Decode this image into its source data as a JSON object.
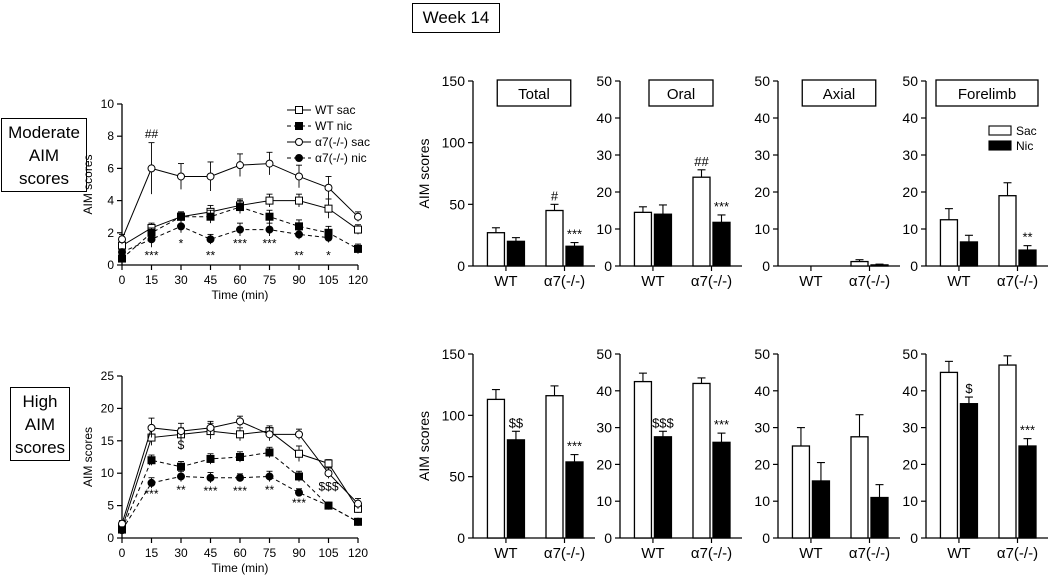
{
  "figure_title": "Week 14",
  "row_labels": [
    {
      "lines": [
        "Moderate",
        "AIM",
        "scores"
      ]
    },
    {
      "lines": [
        "High",
        "AIM",
        "scores"
      ]
    }
  ],
  "chart_data": [
    {
      "type": "line",
      "id": "moderate-time",
      "xlabel": "Time (min)",
      "ylabel": "AIM scores",
      "x": [
        0,
        15,
        30,
        45,
        60,
        75,
        90,
        105,
        120
      ],
      "xticks": [
        "0",
        "15",
        "30",
        "45",
        "60",
        "75",
        "90",
        "105",
        "120"
      ],
      "ylim": [
        0,
        10
      ],
      "yticks": [
        "0",
        "2",
        "4",
        "6",
        "8",
        "10"
      ],
      "series": [
        {
          "name": "WT sac",
          "marker": "open-square",
          "dash": false,
          "values": [
            1.2,
            2.3,
            3.0,
            3.3,
            3.7,
            4.0,
            4.0,
            3.5,
            2.2
          ],
          "errors": [
            0.2,
            0.3,
            0.3,
            0.4,
            0.4,
            0.4,
            0.4,
            0.6,
            0.3
          ]
        },
        {
          "name": "WT nic",
          "marker": "filled-square",
          "dash": true,
          "values": [
            0.4,
            2.0,
            3.0,
            3.0,
            3.6,
            3.0,
            2.4,
            2.0,
            1.0
          ],
          "errors": [
            0.2,
            0.3,
            0.3,
            0.4,
            0.4,
            0.4,
            0.4,
            0.4,
            0.3
          ]
        },
        {
          "name": "α7(-/-) sac",
          "marker": "open-circle",
          "dash": false,
          "values": [
            1.6,
            6.0,
            5.5,
            5.5,
            6.2,
            6.3,
            5.5,
            4.8,
            3.0
          ],
          "errors": [
            0.3,
            1.6,
            0.8,
            0.9,
            0.7,
            0.7,
            0.7,
            0.7,
            0.3
          ]
        },
        {
          "name": "α7(-/-) nic",
          "marker": "filled-circle",
          "dash": true,
          "values": [
            0.8,
            1.6,
            2.4,
            1.6,
            2.2,
            2.2,
            1.9,
            1.7,
            null
          ],
          "errors": [
            0.2,
            0.5,
            0.4,
            0.3,
            0.4,
            0.4,
            0.3,
            0.3,
            null
          ]
        }
      ],
      "annotations": [
        {
          "x": 15,
          "y": 7.9,
          "text": "##"
        },
        {
          "x": 15,
          "y": 0.35,
          "text": "***"
        },
        {
          "x": 30,
          "y": 1.1,
          "text": "*"
        },
        {
          "x": 45,
          "y": 0.35,
          "text": "**"
        },
        {
          "x": 60,
          "y": 1.1,
          "text": "***"
        },
        {
          "x": 75,
          "y": 1.1,
          "text": "***"
        },
        {
          "x": 90,
          "y": 0.35,
          "text": "**"
        },
        {
          "x": 105,
          "y": 0.35,
          "text": "*"
        }
      ]
    },
    {
      "type": "line",
      "id": "high-time",
      "xlabel": "Time (min)",
      "ylabel": "AIM scores",
      "x": [
        0,
        15,
        30,
        45,
        60,
        75,
        90,
        105,
        120
      ],
      "xticks": [
        "0",
        "15",
        "30",
        "45",
        "60",
        "75",
        "90",
        "105",
        "120"
      ],
      "ylim": [
        0,
        25
      ],
      "yticks": [
        "0",
        "5",
        "10",
        "15",
        "20",
        "25"
      ],
      "series": [
        {
          "name": "WT sac",
          "marker": "open-square",
          "dash": false,
          "values": [
            1.5,
            15.5,
            16.0,
            16.5,
            16.0,
            16.5,
            13.0,
            11.5,
            4.5
          ],
          "errors": [
            0.4,
            1.2,
            1.0,
            1.2,
            1.0,
            0.8,
            1.2,
            0.6,
            0.6
          ]
        },
        {
          "name": "WT nic",
          "marker": "filled-square",
          "dash": true,
          "values": [
            1.3,
            12.0,
            11.0,
            12.2,
            12.5,
            13.2,
            9.5,
            5.0,
            2.5
          ],
          "errors": [
            0.3,
            0.8,
            0.8,
            0.8,
            0.8,
            0.8,
            0.8,
            0.5,
            0.4
          ]
        },
        {
          "name": "α7(-/-) sac",
          "marker": "open-circle",
          "dash": false,
          "values": [
            2.2,
            17.0,
            16.5,
            17.0,
            18.0,
            16.0,
            16.0,
            10.0,
            5.3
          ],
          "errors": [
            0.5,
            1.5,
            1.2,
            1.0,
            0.8,
            1.0,
            0.8,
            0.8,
            0.8
          ]
        },
        {
          "name": "α7(-/-) nic",
          "marker": "filled-circle",
          "dash": true,
          "values": [
            1.2,
            8.5,
            9.5,
            9.3,
            9.3,
            9.5,
            7.0,
            5.0,
            2.5
          ],
          "errors": [
            0.3,
            0.8,
            0.8,
            0.8,
            0.6,
            0.8,
            0.6,
            0.5,
            0.4
          ]
        }
      ],
      "annotations": [
        {
          "x": 30,
          "y": 13.7,
          "text": "$"
        },
        {
          "x": 15,
          "y": 6.2,
          "text": "***"
        },
        {
          "x": 30,
          "y": 6.8,
          "text": "**"
        },
        {
          "x": 45,
          "y": 6.6,
          "text": "***"
        },
        {
          "x": 60,
          "y": 6.6,
          "text": "***"
        },
        {
          "x": 75,
          "y": 6.8,
          "text": "**"
        },
        {
          "x": 90,
          "y": 4.8,
          "text": "***"
        },
        {
          "x": 105,
          "y": 7.3,
          "text": "$$$"
        }
      ]
    },
    {
      "type": "bar",
      "id": "moderate-total",
      "title": "Total",
      "ylabel": "AIM scores",
      "ylim": [
        0,
        150
      ],
      "yticks": [
        "0",
        "50",
        "100",
        "150"
      ],
      "categories": [
        "WT",
        "α7(-/-)"
      ],
      "series": [
        {
          "name": "Sac",
          "values": [
            27,
            45
          ],
          "errors": [
            4,
            5
          ]
        },
        {
          "name": "Nic",
          "values": [
            20,
            16
          ],
          "errors": [
            3,
            3
          ]
        }
      ],
      "annotations": [
        {
          "group": 1,
          "bar": 0,
          "text": "#"
        },
        {
          "group": 1,
          "bar": 1,
          "text": "***"
        }
      ]
    },
    {
      "type": "bar",
      "id": "moderate-oral",
      "title": "Oral",
      "ylabel": "",
      "ylim": [
        0,
        50
      ],
      "yticks": [
        "0",
        "10",
        "20",
        "30",
        "40",
        "50"
      ],
      "categories": [
        "WT",
        "α7(-/-)"
      ],
      "series": [
        {
          "name": "Sac",
          "values": [
            14.5,
            24
          ],
          "errors": [
            1.5,
            2
          ]
        },
        {
          "name": "Nic",
          "values": [
            14,
            11.8
          ],
          "errors": [
            2.5,
            2
          ]
        }
      ],
      "annotations": [
        {
          "group": 1,
          "bar": 0,
          "text": "##"
        },
        {
          "group": 1,
          "bar": 1,
          "text": "***"
        }
      ]
    },
    {
      "type": "bar",
      "id": "moderate-axial",
      "title": "Axial",
      "ylabel": "",
      "ylim": [
        0,
        50
      ],
      "yticks": [
        "0",
        "10",
        "20",
        "30",
        "40",
        "50"
      ],
      "categories": [
        "WT",
        "α7(-/-)"
      ],
      "series": [
        {
          "name": "Sac",
          "values": [
            0,
            1.2
          ],
          "errors": [
            0,
            0.5
          ]
        },
        {
          "name": "Nic",
          "values": [
            0,
            0.3
          ],
          "errors": [
            0,
            0.2
          ]
        }
      ],
      "annotations": []
    },
    {
      "type": "bar",
      "id": "moderate-forelimb",
      "title": "Forelimb",
      "ylabel": "",
      "ylim": [
        0,
        50
      ],
      "yticks": [
        "0",
        "10",
        "20",
        "30",
        "40",
        "50"
      ],
      "categories": [
        "WT",
        "α7(-/-)"
      ],
      "series": [
        {
          "name": "Sac",
          "values": [
            12.5,
            19
          ],
          "errors": [
            3,
            3.5
          ]
        },
        {
          "name": "Nic",
          "values": [
            6.5,
            4.3
          ],
          "errors": [
            1.8,
            1.2
          ]
        }
      ],
      "legend": [
        "Sac",
        "Nic"
      ],
      "annotations": [
        {
          "group": 1,
          "bar": 1,
          "text": "**"
        }
      ]
    },
    {
      "type": "bar",
      "id": "high-total",
      "title": "",
      "ylabel": "AIM scores",
      "ylim": [
        0,
        150
      ],
      "yticks": [
        "0",
        "50",
        "100",
        "150"
      ],
      "categories": [
        "WT",
        "α7(-/-)"
      ],
      "series": [
        {
          "name": "Sac",
          "values": [
            113,
            116
          ],
          "errors": [
            8,
            8
          ]
        },
        {
          "name": "Nic",
          "values": [
            80,
            62
          ],
          "errors": [
            7,
            6
          ]
        }
      ],
      "annotations": [
        {
          "group": 0,
          "bar": 1,
          "text": "$$"
        },
        {
          "group": 1,
          "bar": 1,
          "text": "***"
        }
      ]
    },
    {
      "type": "bar",
      "id": "high-oral",
      "title": "",
      "ylabel": "",
      "ylim": [
        0,
        50
      ],
      "yticks": [
        "0",
        "10",
        "20",
        "30",
        "40",
        "50"
      ],
      "categories": [
        "WT",
        "α7(-/-)"
      ],
      "series": [
        {
          "name": "Sac",
          "values": [
            42.5,
            42
          ],
          "errors": [
            2.3,
            1.5
          ]
        },
        {
          "name": "Nic",
          "values": [
            27.5,
            26
          ],
          "errors": [
            1.5,
            2.5
          ]
        }
      ],
      "annotations": [
        {
          "group": 0,
          "bar": 1,
          "text": "$$$"
        },
        {
          "group": 1,
          "bar": 1,
          "text": "***"
        }
      ]
    },
    {
      "type": "bar",
      "id": "high-axial",
      "title": "",
      "ylabel": "",
      "ylim": [
        0,
        50
      ],
      "yticks": [
        "0",
        "10",
        "20",
        "30",
        "40",
        "50"
      ],
      "categories": [
        "WT",
        "α7(-/-)"
      ],
      "series": [
        {
          "name": "Sac",
          "values": [
            25,
            27.5
          ],
          "errors": [
            5,
            6
          ]
        },
        {
          "name": "Nic",
          "values": [
            15.5,
            11
          ],
          "errors": [
            5,
            3.5
          ]
        }
      ],
      "annotations": []
    },
    {
      "type": "bar",
      "id": "high-forelimb",
      "title": "",
      "ylabel": "",
      "ylim": [
        0,
        50
      ],
      "yticks": [
        "0",
        "10",
        "20",
        "30",
        "40",
        "50"
      ],
      "categories": [
        "WT",
        "α7(-/-)"
      ],
      "series": [
        {
          "name": "Sac",
          "values": [
            45,
            47
          ],
          "errors": [
            3,
            2.5
          ]
        },
        {
          "name": "Nic",
          "values": [
            36.5,
            25
          ],
          "errors": [
            1.8,
            2
          ]
        }
      ],
      "annotations": [
        {
          "group": 0,
          "bar": 1,
          "text": "$"
        },
        {
          "group": 1,
          "bar": 1,
          "text": "***"
        }
      ]
    }
  ]
}
